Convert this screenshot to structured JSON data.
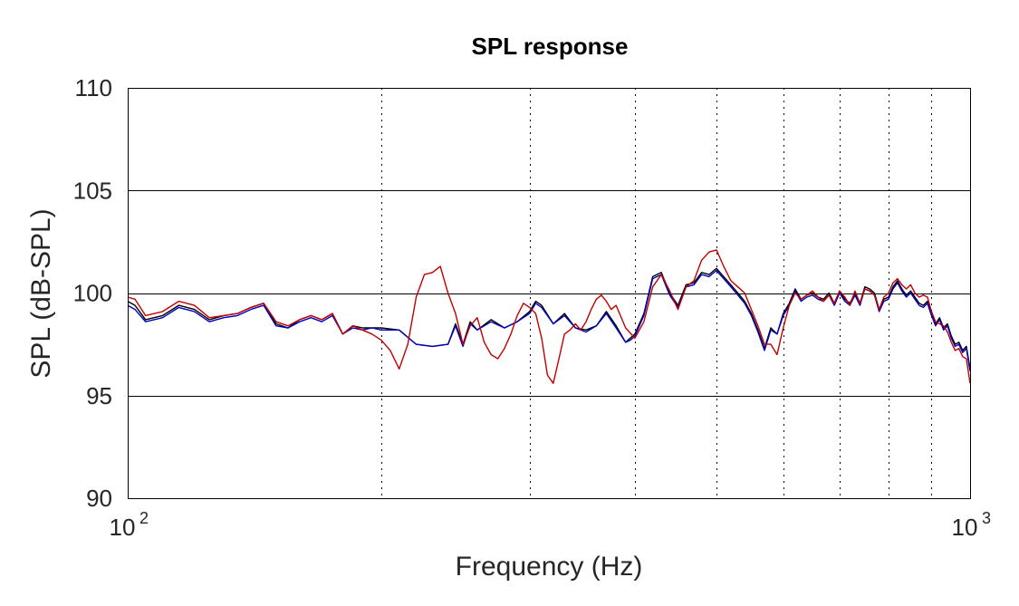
{
  "chart_data": {
    "type": "line",
    "title": "SPL response",
    "xlabel": "Frequency (Hz)",
    "ylabel": "SPL (dB-SPL)",
    "x_scale": "log",
    "xlim": [
      100,
      1000
    ],
    "ylim": [
      90,
      110
    ],
    "x_ticks": [
      {
        "value": 100,
        "base": "10",
        "exp": "2"
      },
      {
        "value": 1000,
        "base": "10",
        "exp": "3"
      }
    ],
    "y_ticks": [
      {
        "value": 90,
        "label": "90"
      },
      {
        "value": 95,
        "label": "95"
      },
      {
        "value": 100,
        "label": "100"
      },
      {
        "value": 105,
        "label": "105"
      },
      {
        "value": 110,
        "label": "110"
      }
    ],
    "x_minor_grid": [
      200,
      300,
      400,
      500,
      600,
      700,
      800,
      900
    ],
    "y_major_grid": [
      95,
      100,
      105
    ],
    "grid": true,
    "legend": "none",
    "series": [
      {
        "color": "#000000",
        "x": [
          100,
          102,
          105,
          110,
          115,
          120,
          125,
          130,
          135,
          140,
          145,
          150,
          155,
          160,
          165,
          170,
          175,
          180,
          185,
          190,
          195,
          200,
          210,
          220,
          230,
          240,
          245,
          250,
          255,
          260,
          270,
          280,
          290,
          300,
          305,
          310,
          320,
          330,
          340,
          350,
          360,
          370,
          380,
          390,
          395,
          400,
          410,
          420,
          430,
          440,
          450,
          460,
          470,
          480,
          490,
          500,
          510,
          520,
          530,
          540,
          550,
          560,
          570,
          580,
          590,
          600,
          610,
          620,
          630,
          640,
          650,
          660,
          670,
          680,
          690,
          700,
          710,
          720,
          730,
          740,
          750,
          760,
          770,
          780,
          790,
          800,
          810,
          820,
          830,
          840,
          850,
          860,
          870,
          880,
          890,
          900,
          910,
          920,
          930,
          940,
          950,
          960,
          970,
          980,
          990,
          1000
        ],
        "y": [
          99.6,
          99.4,
          98.7,
          98.9,
          99.4,
          99.2,
          98.7,
          98.9,
          99.0,
          99.3,
          99.5,
          98.5,
          98.3,
          98.7,
          98.9,
          98.7,
          99.0,
          98.0,
          98.4,
          98.3,
          98.3,
          98.3,
          98.2,
          97.5,
          97.4,
          97.5,
          98.5,
          97.5,
          98.6,
          98.2,
          98.7,
          98.3,
          98.6,
          99.1,
          99.6,
          99.4,
          98.5,
          99.0,
          98.3,
          98.2,
          98.4,
          99.1,
          98.4,
          97.6,
          97.8,
          98.0,
          99.0,
          100.8,
          101.0,
          100.0,
          99.4,
          100.4,
          100.5,
          101.0,
          100.9,
          101.2,
          100.8,
          100.4,
          100.0,
          99.6,
          99.0,
          98.2,
          97.3,
          98.3,
          98.0,
          99.0,
          99.5,
          100.2,
          99.7,
          99.9,
          100.0,
          99.8,
          99.7,
          100.0,
          99.5,
          100.1,
          99.7,
          99.5,
          100.0,
          99.5,
          100.3,
          100.2,
          100.0,
          99.2,
          99.7,
          99.8,
          100.3,
          100.6,
          100.2,
          99.9,
          100.1,
          99.8,
          99.5,
          99.4,
          99.6,
          99.0,
          98.5,
          98.8,
          98.3,
          98.5,
          97.9,
          97.5,
          97.6,
          97.2,
          97.4,
          96.3
        ]
      },
      {
        "color": "#0000c0",
        "x": [
          100,
          102,
          105,
          110,
          115,
          120,
          125,
          130,
          135,
          140,
          145,
          150,
          155,
          160,
          165,
          170,
          175,
          180,
          185,
          190,
          195,
          200,
          210,
          220,
          230,
          240,
          245,
          250,
          255,
          260,
          270,
          280,
          290,
          300,
          305,
          310,
          320,
          330,
          340,
          350,
          360,
          370,
          380,
          390,
          395,
          400,
          410,
          420,
          430,
          440,
          450,
          460,
          470,
          480,
          490,
          500,
          510,
          520,
          530,
          540,
          550,
          560,
          570,
          580,
          590,
          600,
          610,
          620,
          630,
          640,
          650,
          660,
          670,
          680,
          690,
          700,
          710,
          720,
          730,
          740,
          750,
          760,
          770,
          780,
          790,
          800,
          810,
          820,
          830,
          840,
          850,
          860,
          870,
          880,
          890,
          900,
          910,
          920,
          930,
          940,
          950,
          960,
          970,
          980,
          990,
          1000
        ],
        "y": [
          99.4,
          99.2,
          98.6,
          98.8,
          99.3,
          99.1,
          98.6,
          98.8,
          98.9,
          99.2,
          99.4,
          98.4,
          98.3,
          98.6,
          98.8,
          98.6,
          98.9,
          98.0,
          98.3,
          98.2,
          98.3,
          98.2,
          98.2,
          97.5,
          97.4,
          97.5,
          98.4,
          97.4,
          98.5,
          98.2,
          98.6,
          98.3,
          98.6,
          99.0,
          99.5,
          99.3,
          98.5,
          98.9,
          98.3,
          98.1,
          98.4,
          99.0,
          98.3,
          97.6,
          97.7,
          97.9,
          98.9,
          100.7,
          100.9,
          99.9,
          99.3,
          100.3,
          100.4,
          100.9,
          100.8,
          101.1,
          100.7,
          100.3,
          99.9,
          99.5,
          98.9,
          98.1,
          97.2,
          98.2,
          98.0,
          98.9,
          99.4,
          100.1,
          99.6,
          99.8,
          99.9,
          99.7,
          99.6,
          99.9,
          99.4,
          100.0,
          99.6,
          99.4,
          99.9,
          99.4,
          100.2,
          100.1,
          99.9,
          99.1,
          99.6,
          99.7,
          100.2,
          100.5,
          100.1,
          99.8,
          100.0,
          99.7,
          99.4,
          99.3,
          99.5,
          98.9,
          98.4,
          98.7,
          98.2,
          98.4,
          97.8,
          97.4,
          97.5,
          97.1,
          97.3,
          96.2
        ]
      },
      {
        "color": "#c00000",
        "x": [
          100,
          102,
          105,
          110,
          115,
          120,
          125,
          130,
          135,
          140,
          145,
          150,
          155,
          160,
          165,
          170,
          175,
          180,
          185,
          190,
          195,
          200,
          205,
          210,
          215,
          220,
          225,
          230,
          235,
          240,
          245,
          250,
          255,
          260,
          265,
          270,
          275,
          280,
          285,
          290,
          295,
          300,
          305,
          310,
          315,
          320,
          325,
          330,
          335,
          340,
          345,
          350,
          355,
          360,
          365,
          370,
          375,
          380,
          390,
          400,
          410,
          420,
          430,
          440,
          450,
          460,
          470,
          480,
          490,
          500,
          510,
          520,
          530,
          540,
          550,
          560,
          570,
          580,
          590,
          600,
          610,
          620,
          630,
          640,
          650,
          660,
          670,
          680,
          690,
          700,
          710,
          720,
          730,
          740,
          750,
          760,
          770,
          780,
          790,
          800,
          810,
          820,
          830,
          840,
          850,
          860,
          870,
          880,
          890,
          900,
          910,
          920,
          930,
          940,
          950,
          960,
          970,
          980,
          990,
          1000
        ],
        "y": [
          99.8,
          99.7,
          98.9,
          99.1,
          99.6,
          99.4,
          98.8,
          98.9,
          99.0,
          99.3,
          99.5,
          98.6,
          98.4,
          98.7,
          98.9,
          98.7,
          99.0,
          98.0,
          98.4,
          98.2,
          98.0,
          97.7,
          97.2,
          96.3,
          97.5,
          99.8,
          100.9,
          101.0,
          101.3,
          100.0,
          99.0,
          97.5,
          98.4,
          98.8,
          97.6,
          97.0,
          96.8,
          97.3,
          98.0,
          98.9,
          99.5,
          99.3,
          99.0,
          97.8,
          96.0,
          95.6,
          96.8,
          98.0,
          98.2,
          98.5,
          98.2,
          98.6,
          99.2,
          99.7,
          99.9,
          99.6,
          99.2,
          99.4,
          98.3,
          97.8,
          98.6,
          100.3,
          100.9,
          100.1,
          99.2,
          100.3,
          100.6,
          101.6,
          102.0,
          102.1,
          101.3,
          100.6,
          100.3,
          100.0,
          99.2,
          98.4,
          97.5,
          97.5,
          97.0,
          98.3,
          99.4,
          100.0,
          99.7,
          99.9,
          100.1,
          99.8,
          99.6,
          99.9,
          99.5,
          100.1,
          99.8,
          99.4,
          100.1,
          99.5,
          100.2,
          100.1,
          99.9,
          99.2,
          99.8,
          100.0,
          100.5,
          100.7,
          100.4,
          100.2,
          100.4,
          100.0,
          99.8,
          99.9,
          99.8,
          99.1,
          98.6,
          98.5,
          98.4,
          98.1,
          97.6,
          97.2,
          97.3,
          96.9,
          96.8,
          95.6
        ]
      }
    ]
  }
}
